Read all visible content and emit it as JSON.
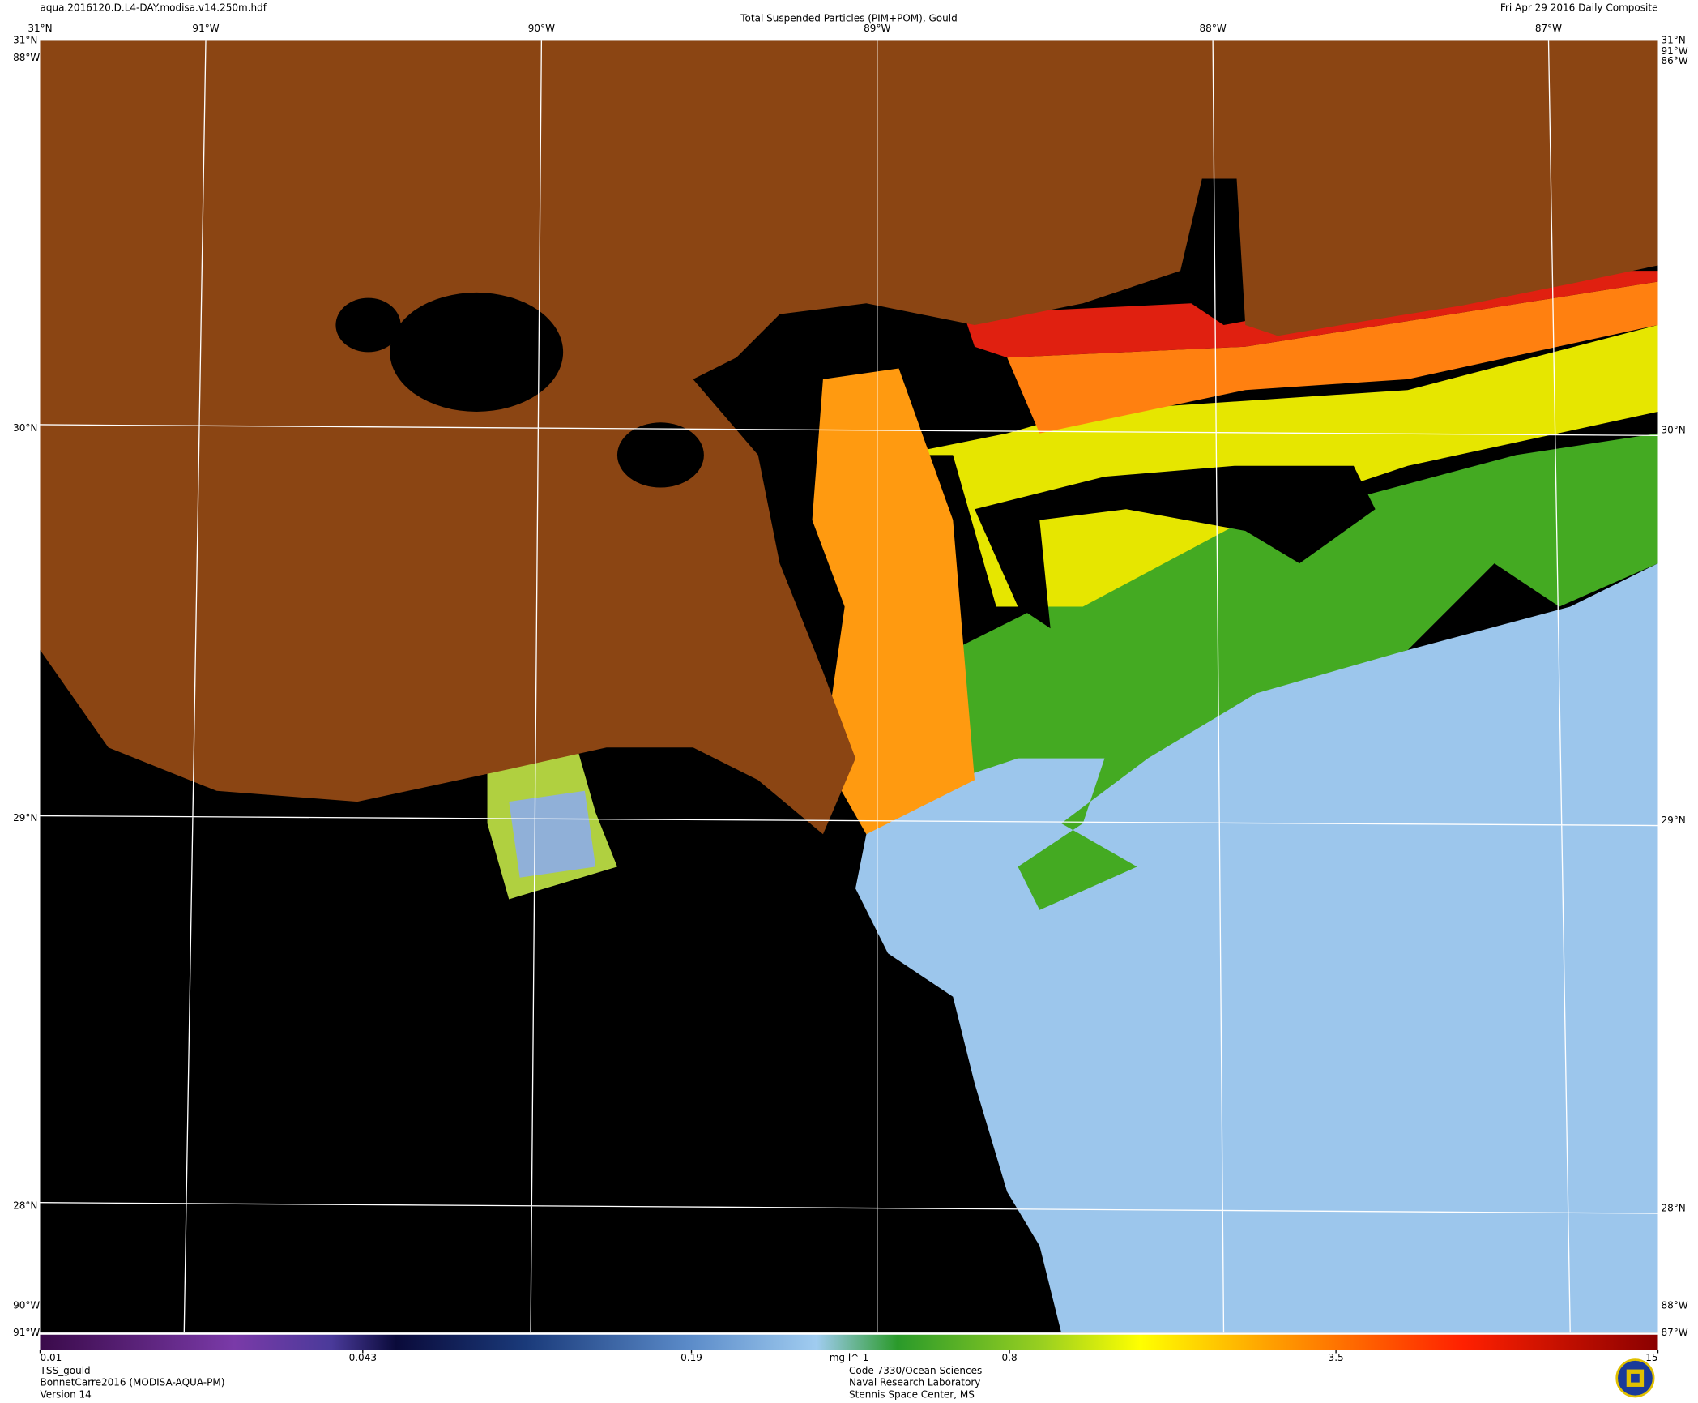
{
  "header": {
    "file": "aqua.2016120.D.L4-DAY.modisa.v14.250m.hdf",
    "title": "Total Suspended Particles (PIM+POM), Gould",
    "date": "Fri Apr 29 2016 Daily Composite"
  },
  "graticule": {
    "top": [
      "31°N",
      "91°W",
      "90°W",
      "89°W",
      "88°W",
      "87°W"
    ],
    "left": [
      "31°N",
      "88°W",
      "30°N",
      "29°N",
      "28°N",
      "90°W",
      "91°W"
    ],
    "right": [
      "31°N",
      "91°W",
      "86°W",
      "30°N",
      "29°N",
      "28°N",
      "88°W",
      "87°W"
    ]
  },
  "colorbar": {
    "range": [
      0.01,
      15
    ],
    "ticks": [
      0.01,
      0.043,
      0.19,
      0.8,
      3.5,
      15
    ],
    "units": "mg l^-1",
    "log": true
  },
  "footer": {
    "left": [
      "TSS_gould",
      "BonnetCarre2016 (MODISA-AQUA-PM)",
      "Version 14"
    ],
    "center": [
      "Code 7330/Ocean Sciences",
      "Naval Research Laboratory",
      "Stennis Space Center, MS"
    ]
  }
}
